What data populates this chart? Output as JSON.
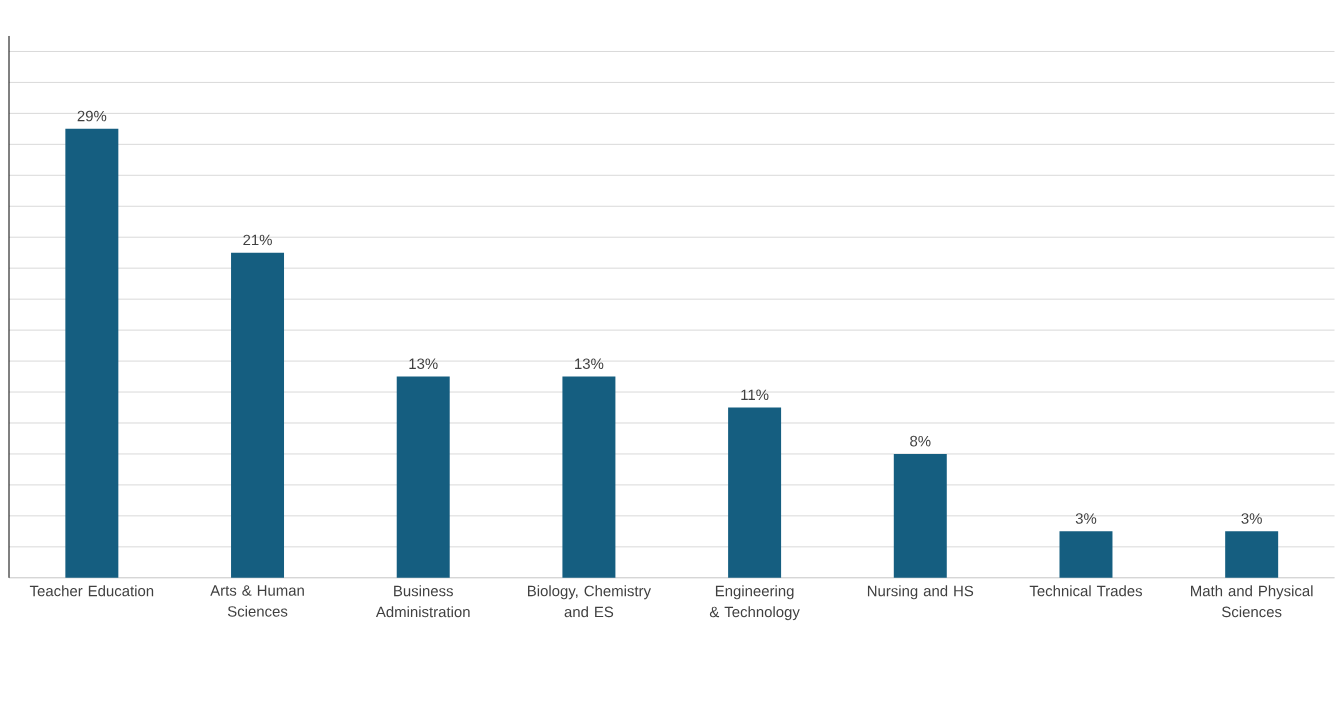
{
  "chart_data": {
    "type": "bar",
    "categories": [
      "Teacher Education",
      "Arts & Human Sciences",
      "Business Administration",
      "Biology, Chemistry and ES",
      "Engineering & Technology",
      "Nursing and HS",
      "Technical Trades",
      "Math and Physical Sciences"
    ],
    "values": [
      29,
      21,
      13,
      13,
      11,
      8,
      3,
      3
    ],
    "value_labels": [
      "29%",
      "21%",
      "13%",
      "13%",
      "11%",
      "8%",
      "3%",
      "3%"
    ],
    "color": "#155e80",
    "ylim": [
      0,
      35
    ],
    "grid": "y",
    "tick_labels": "x"
  }
}
